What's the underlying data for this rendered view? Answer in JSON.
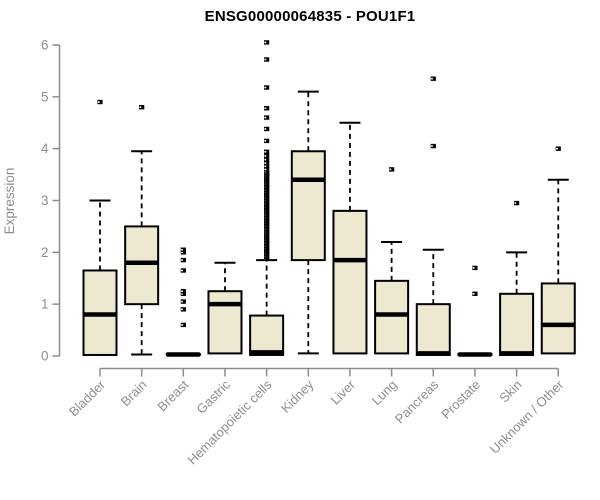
{
  "chart_data": {
    "type": "boxplot",
    "title": "ENSG00000064835 - POU1F1",
    "ylabel": "Expression",
    "xlabel": "",
    "ylim": [
      0,
      6
    ],
    "yticks": [
      0,
      1,
      2,
      3,
      4,
      5,
      6
    ],
    "grid": false,
    "legend": null,
    "categories": [
      "Bladder",
      "Brain",
      "Breast",
      "Gastric",
      "Hematopoietic cells",
      "Kidney",
      "Liver",
      "Lung",
      "Pancreas",
      "Prostate",
      "Skin",
      "Unknown / Other"
    ],
    "boxes": [
      {
        "category": "Bladder",
        "low": 0.02,
        "q1": 0.02,
        "median": 0.8,
        "q3": 1.65,
        "high": 3.0,
        "outliers": [
          4.9
        ]
      },
      {
        "category": "Brain",
        "low": 0.03,
        "q1": 1.0,
        "median": 1.8,
        "q3": 2.5,
        "high": 3.95,
        "outliers": [
          4.8
        ]
      },
      {
        "category": "Breast",
        "low": 0.02,
        "q1": 0.02,
        "median": 0.03,
        "q3": 0.04,
        "high": 0.04,
        "outliers": [
          0.6,
          0.9,
          1.05,
          1.2,
          1.25,
          1.65,
          1.85,
          2.0,
          2.05
        ]
      },
      {
        "category": "Gastric",
        "low": 0.05,
        "q1": 0.05,
        "median": 1.0,
        "q3": 1.25,
        "high": 1.8,
        "outliers": []
      },
      {
        "category": "Hematopoietic cells",
        "low": 0.02,
        "q1": 0.02,
        "median": 0.07,
        "q3": 0.78,
        "high": 1.85,
        "outliers": [
          1.88,
          1.91,
          1.94,
          1.97,
          2.0,
          2.03,
          2.06,
          2.09,
          2.12,
          2.15,
          2.18,
          2.21,
          2.24,
          2.27,
          2.3,
          2.33,
          2.36,
          2.39,
          2.42,
          2.45,
          2.48,
          2.51,
          2.54,
          2.57,
          2.6,
          2.63,
          2.66,
          2.69,
          2.72,
          2.75,
          2.78,
          2.81,
          2.84,
          2.87,
          2.9,
          2.93,
          2.96,
          2.99,
          3.02,
          3.05,
          3.08,
          3.11,
          3.14,
          3.17,
          3.2,
          3.23,
          3.26,
          3.29,
          3.32,
          3.35,
          3.38,
          3.41,
          3.44,
          3.47,
          3.5,
          3.53,
          3.56,
          3.6,
          3.66,
          3.72,
          3.79,
          3.86,
          3.94,
          4.15,
          4.38,
          4.6,
          4.78,
          5.18,
          5.72,
          6.05
        ]
      },
      {
        "category": "Kidney",
        "low": 0.05,
        "q1": 1.85,
        "median": 3.4,
        "q3": 3.95,
        "high": 5.1,
        "outliers": []
      },
      {
        "category": "Liver",
        "low": 0.05,
        "q1": 0.05,
        "median": 1.85,
        "q3": 2.8,
        "high": 4.5,
        "outliers": []
      },
      {
        "category": "Lung",
        "low": 0.05,
        "q1": 0.05,
        "median": 0.8,
        "q3": 1.45,
        "high": 2.2,
        "outliers": [
          3.6
        ]
      },
      {
        "category": "Pancreas",
        "low": 0.02,
        "q1": 0.02,
        "median": 0.05,
        "q3": 1.0,
        "high": 2.05,
        "outliers": [
          4.05,
          5.35
        ]
      },
      {
        "category": "Prostate",
        "low": 0.02,
        "q1": 0.02,
        "median": 0.03,
        "q3": 0.04,
        "high": 0.04,
        "outliers": [
          1.2,
          1.7
        ]
      },
      {
        "category": "Skin",
        "low": 0.02,
        "q1": 0.02,
        "median": 0.05,
        "q3": 1.2,
        "high": 2.0,
        "outliers": [
          2.95
        ]
      },
      {
        "category": "Unknown / Other",
        "low": 0.05,
        "q1": 0.05,
        "median": 0.6,
        "q3": 1.4,
        "high": 3.4,
        "outliers": [
          4.0
        ]
      }
    ],
    "colors": {
      "box_fill": "#ede8d0",
      "box_stroke": "#000000",
      "median": "#000000",
      "whisker": "#000000",
      "outlier": "#000000",
      "axis": "#8c8c8c",
      "tick_label": "#8e8e8e",
      "title": "#000000",
      "background": "#ffffff"
    }
  }
}
